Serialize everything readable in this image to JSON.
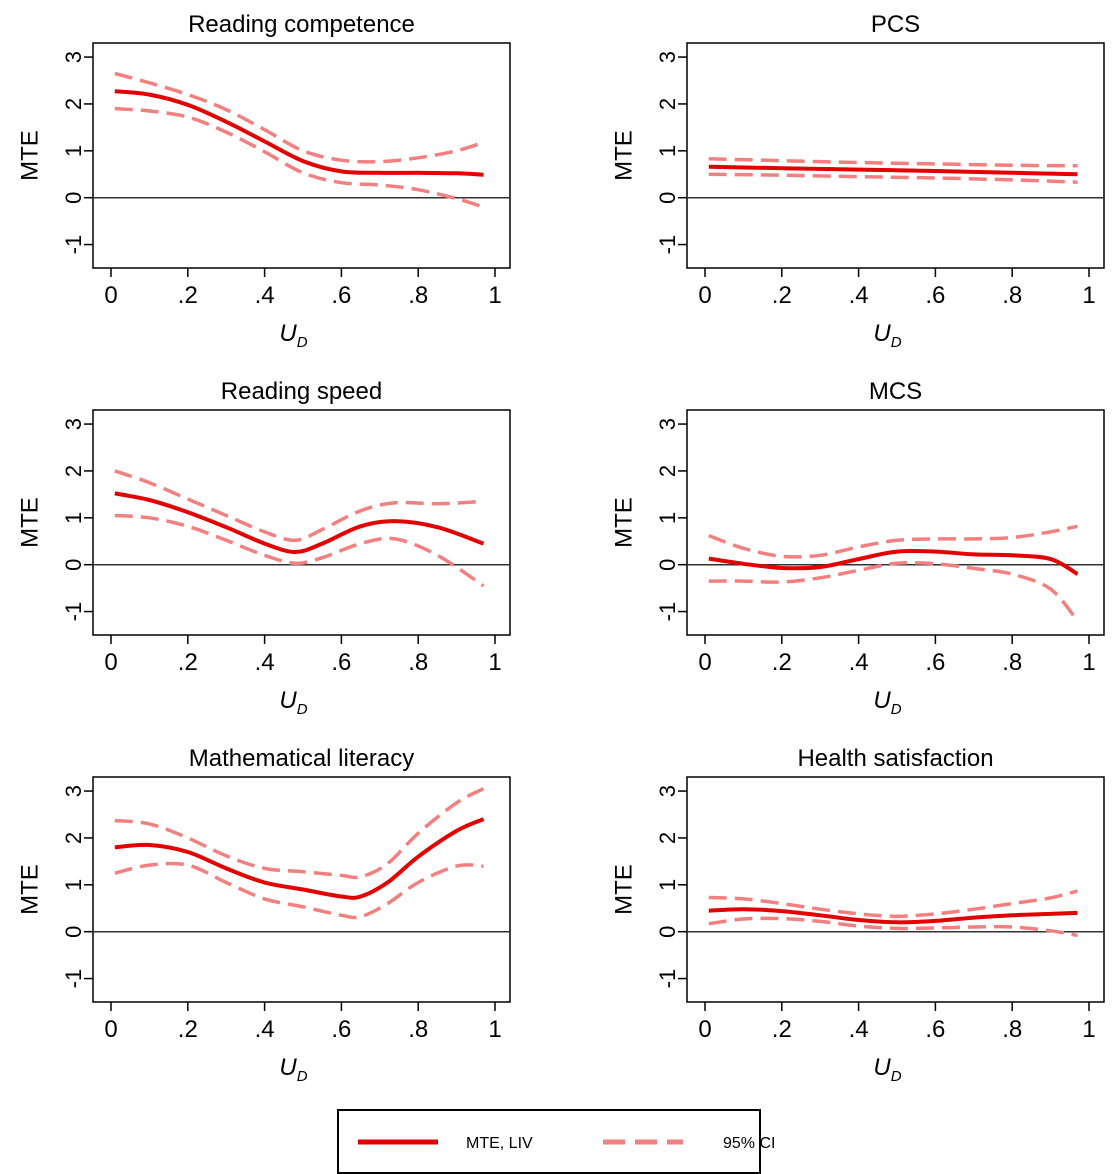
{
  "colors": {
    "mte": "#e50000",
    "ci": "#f28080",
    "axis": "#000000",
    "zero": "#333333"
  },
  "legend": {
    "mte_label": "MTE, LIV",
    "ci_label": "95% CI"
  },
  "chart_data": [
    {
      "type": "line",
      "title": "Reading competence",
      "xlabel_main": "U",
      "xlabel_sub": "D",
      "ylabel": "MTE",
      "xlim": [
        0,
        1
      ],
      "ylim": [
        -1.5,
        3.3
      ],
      "xticks": [
        0,
        0.2,
        0.4,
        0.6,
        0.8,
        1
      ],
      "xtick_labels": [
        "0",
        ".2",
        ".4",
        ".6",
        ".8",
        "1"
      ],
      "yticks": [
        -1,
        0,
        1,
        2,
        3
      ],
      "ytick_labels": [
        "-1",
        "0",
        "1",
        "2",
        "3"
      ],
      "x": [
        0.01,
        0.1,
        0.2,
        0.3,
        0.4,
        0.5,
        0.6,
        0.7,
        0.8,
        0.9,
        0.97
      ],
      "series": [
        {
          "name": "MTE, LIV",
          "values": [
            2.27,
            2.2,
            1.98,
            1.62,
            1.2,
            0.78,
            0.56,
            0.53,
            0.53,
            0.52,
            0.49
          ]
        },
        {
          "name": "95% CI",
          "bound": "upper",
          "values": [
            2.65,
            2.45,
            2.2,
            1.88,
            1.45,
            1.0,
            0.8,
            0.77,
            0.85,
            1.0,
            1.18
          ]
        },
        {
          "name": "95% CI",
          "bound": "lower",
          "values": [
            1.9,
            1.85,
            1.72,
            1.4,
            0.98,
            0.53,
            0.32,
            0.27,
            0.17,
            -0.02,
            -0.2
          ]
        }
      ]
    },
    {
      "type": "line",
      "title": "PCS",
      "xlabel_main": "U",
      "xlabel_sub": "D",
      "ylabel": "MTE",
      "xlim": [
        0,
        1
      ],
      "ylim": [
        -1.5,
        3.3
      ],
      "xticks": [
        0,
        0.2,
        0.4,
        0.6,
        0.8,
        1
      ],
      "xtick_labels": [
        "0",
        ".2",
        ".4",
        ".6",
        ".8",
        "1"
      ],
      "yticks": [
        -1,
        0,
        1,
        2,
        3
      ],
      "ytick_labels": [
        "-1",
        "0",
        "1",
        "2",
        "3"
      ],
      "x": [
        0.01,
        0.2,
        0.4,
        0.6,
        0.8,
        0.97
      ],
      "series": [
        {
          "name": "MTE, LIV",
          "values": [
            0.66,
            0.63,
            0.6,
            0.57,
            0.53,
            0.5
          ]
        },
        {
          "name": "95% CI",
          "bound": "upper",
          "values": [
            0.83,
            0.79,
            0.75,
            0.72,
            0.69,
            0.68
          ]
        },
        {
          "name": "95% CI",
          "bound": "lower",
          "values": [
            0.5,
            0.48,
            0.45,
            0.42,
            0.38,
            0.33
          ]
        }
      ]
    },
    {
      "type": "line",
      "title": "Reading speed",
      "xlabel_main": "U",
      "xlabel_sub": "D",
      "ylabel": "MTE",
      "xlim": [
        0,
        1
      ],
      "ylim": [
        -1.5,
        3.3
      ],
      "xticks": [
        0,
        0.2,
        0.4,
        0.6,
        0.8,
        1
      ],
      "xtick_labels": [
        "0",
        ".2",
        ".4",
        ".6",
        ".8",
        "1"
      ],
      "yticks": [
        -1,
        0,
        1,
        2,
        3
      ],
      "ytick_labels": [
        "-1",
        "0",
        "1",
        "2",
        "3"
      ],
      "x": [
        0.01,
        0.1,
        0.2,
        0.3,
        0.4,
        0.48,
        0.55,
        0.65,
        0.74,
        0.85,
        0.97
      ],
      "series": [
        {
          "name": "MTE, LIV",
          "values": [
            1.52,
            1.38,
            1.12,
            0.8,
            0.45,
            0.27,
            0.45,
            0.82,
            0.93,
            0.8,
            0.45
          ]
        },
        {
          "name": "95% CI",
          "bound": "upper",
          "values": [
            2.0,
            1.75,
            1.4,
            1.05,
            0.7,
            0.52,
            0.75,
            1.15,
            1.32,
            1.3,
            1.35
          ]
        },
        {
          "name": "95% CI",
          "bound": "lower",
          "values": [
            1.05,
            1.0,
            0.82,
            0.52,
            0.2,
            0.03,
            0.15,
            0.45,
            0.55,
            0.2,
            -0.45
          ]
        }
      ]
    },
    {
      "type": "line",
      "title": "MCS",
      "xlabel_main": "U",
      "xlabel_sub": "D",
      "ylabel": "MTE",
      "xlim": [
        0,
        1
      ],
      "ylim": [
        -1.5,
        3.3
      ],
      "xticks": [
        0,
        0.2,
        0.4,
        0.6,
        0.8,
        1
      ],
      "xtick_labels": [
        "0",
        ".2",
        ".4",
        ".6",
        ".8",
        "1"
      ],
      "yticks": [
        -1,
        0,
        1,
        2,
        3
      ],
      "ytick_labels": [
        "-1",
        "0",
        "1",
        "2",
        "3"
      ],
      "x": [
        0.01,
        0.1,
        0.2,
        0.3,
        0.4,
        0.5,
        0.6,
        0.7,
        0.8,
        0.9,
        0.97
      ],
      "series": [
        {
          "name": "MTE, LIV",
          "values": [
            0.13,
            0.02,
            -0.07,
            -0.05,
            0.12,
            0.28,
            0.28,
            0.22,
            0.2,
            0.12,
            -0.2
          ]
        },
        {
          "name": "95% CI",
          "bound": "upper",
          "values": [
            0.62,
            0.35,
            0.18,
            0.2,
            0.38,
            0.52,
            0.55,
            0.55,
            0.58,
            0.7,
            0.82
          ]
        },
        {
          "name": "95% CI",
          "bound": "lower",
          "values": [
            -0.35,
            -0.35,
            -0.37,
            -0.28,
            -0.12,
            0.03,
            0.02,
            -0.08,
            -0.2,
            -0.52,
            -1.2
          ]
        }
      ]
    },
    {
      "type": "line",
      "title": "Mathematical literacy",
      "xlabel_main": "U",
      "xlabel_sub": "D",
      "ylabel": "MTE",
      "xlim": [
        0,
        1
      ],
      "ylim": [
        -1.5,
        3.3
      ],
      "xticks": [
        0,
        0.2,
        0.4,
        0.6,
        0.8,
        1
      ],
      "xtick_labels": [
        "0",
        ".2",
        ".4",
        ".6",
        ".8",
        "1"
      ],
      "yticks": [
        -1,
        0,
        1,
        2,
        3
      ],
      "ytick_labels": [
        "-1",
        "0",
        "1",
        "2",
        "3"
      ],
      "x": [
        0.01,
        0.1,
        0.2,
        0.3,
        0.4,
        0.5,
        0.6,
        0.65,
        0.72,
        0.8,
        0.9,
        0.97
      ],
      "series": [
        {
          "name": "MTE, LIV",
          "values": [
            1.8,
            1.85,
            1.7,
            1.35,
            1.05,
            0.9,
            0.75,
            0.75,
            1.05,
            1.6,
            2.15,
            2.4
          ]
        },
        {
          "name": "95% CI",
          "bound": "upper",
          "values": [
            2.37,
            2.3,
            2.0,
            1.62,
            1.35,
            1.28,
            1.2,
            1.17,
            1.45,
            2.1,
            2.75,
            3.05
          ]
        },
        {
          "name": "95% CI",
          "bound": "lower",
          "values": [
            1.25,
            1.42,
            1.42,
            1.05,
            0.7,
            0.53,
            0.35,
            0.32,
            0.6,
            1.05,
            1.4,
            1.4
          ]
        }
      ]
    },
    {
      "type": "line",
      "title": "Health satisfaction",
      "xlabel_main": "U",
      "xlabel_sub": "D",
      "ylabel": "MTE",
      "xlim": [
        0,
        1
      ],
      "ylim": [
        -1.5,
        3.3
      ],
      "xticks": [
        0,
        0.2,
        0.4,
        0.6,
        0.8,
        1
      ],
      "xtick_labels": [
        "0",
        ".2",
        ".4",
        ".6",
        ".8",
        "1"
      ],
      "yticks": [
        -1,
        0,
        1,
        2,
        3
      ],
      "ytick_labels": [
        "-1",
        "0",
        "1",
        "2",
        "3"
      ],
      "x": [
        0.01,
        0.1,
        0.2,
        0.3,
        0.4,
        0.5,
        0.6,
        0.7,
        0.8,
        0.9,
        0.97
      ],
      "series": [
        {
          "name": "MTE, LIV",
          "values": [
            0.45,
            0.48,
            0.44,
            0.35,
            0.25,
            0.2,
            0.23,
            0.3,
            0.35,
            0.38,
            0.4
          ]
        },
        {
          "name": "95% CI",
          "bound": "upper",
          "values": [
            0.73,
            0.7,
            0.6,
            0.48,
            0.38,
            0.33,
            0.38,
            0.48,
            0.6,
            0.72,
            0.87
          ]
        },
        {
          "name": "95% CI",
          "bound": "lower",
          "values": [
            0.17,
            0.27,
            0.28,
            0.22,
            0.12,
            0.07,
            0.08,
            0.1,
            0.1,
            0.02,
            -0.08
          ]
        }
      ]
    }
  ]
}
